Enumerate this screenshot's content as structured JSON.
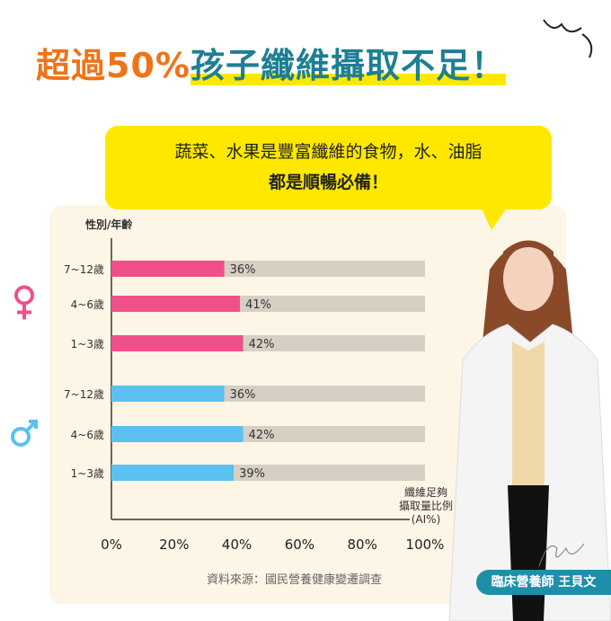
{
  "headline": {
    "part1": "超過50%",
    "part2": "孩子纖維攝取不足！"
  },
  "bubble": {
    "line1": "蔬菜、水果是豐富纖維的食物，水、油脂",
    "line2": "都是順暢必備！"
  },
  "source": "資料來源：國民營養健康變遷調查",
  "nutritionist": "臨床營養師 王貝文",
  "colors": {
    "female": "#f0508a",
    "male": "#5bc0f0",
    "track": "#d6d0c4",
    "accent_orange": "#f07318",
    "accent_teal": "#1e7f94"
  },
  "chart_data": {
    "type": "bar",
    "orientation": "horizontal",
    "ylabel": "性別/年齡",
    "xlabel": [
      "纖維足夠",
      "攝取量比例",
      "(AI%)"
    ],
    "xlim": [
      0,
      100
    ],
    "xticks": [
      "0%",
      "20%",
      "40%",
      "60%",
      "80%",
      "100%"
    ],
    "groups": [
      {
        "name": "female",
        "icon": "female-symbol-icon",
        "categories": [
          "7~12歲",
          "4~6歲",
          "1~3歲"
        ],
        "values": [
          36,
          41,
          42
        ],
        "labels": [
          "36%",
          "41%",
          "42%"
        ]
      },
      {
        "name": "male",
        "icon": "male-symbol-icon",
        "categories": [
          "7~12歲",
          "4~6歲",
          "1~3歲"
        ],
        "values": [
          36,
          42,
          39
        ],
        "labels": [
          "36%",
          "42%",
          "39%"
        ]
      }
    ]
  }
}
